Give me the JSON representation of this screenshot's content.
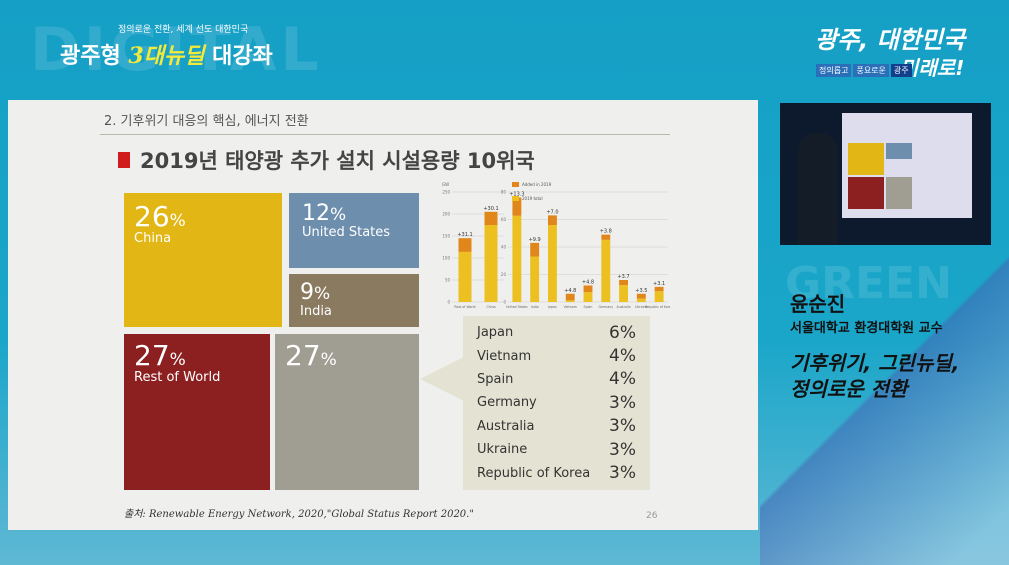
{
  "header": {
    "ghost": "DIGITAL",
    "tagline": "정의로운 전환, 세계 선도 대한민국",
    "title_a": "광주형 ",
    "title_b": "3대뉴딜",
    "title_c": " 대강좌"
  },
  "brand": {
    "line1": "광주, 대한민국",
    "line2": "미래로!",
    "chips": [
      "정의롭고",
      "풍요로운",
      "광주"
    ],
    "ghost": "GREEN"
  },
  "slide": {
    "section": "2. 기후위기 대응의 핵심, 에너지 전환",
    "heading": "2019년 태양광 추가 설치 시설용량 10위국",
    "tiles": [
      {
        "pct": "26",
        "label": "China",
        "color": "#e2b614"
      },
      {
        "pct": "12",
        "label": "United States",
        "color": "#6d8fad"
      },
      {
        "pct": "9",
        "label": "India",
        "color": "#8a7a60"
      },
      {
        "pct": "27",
        "label": "Rest of World",
        "color": "#8c2020"
      },
      {
        "pct": "27",
        "label": "",
        "color": "#a09e92"
      }
    ],
    "pct_sign": "%",
    "others": [
      {
        "country": "Japan",
        "pct": "6%"
      },
      {
        "country": "Vietnam",
        "pct": "4%"
      },
      {
        "country": "Spain",
        "pct": "4%"
      },
      {
        "country": "Germany",
        "pct": "3%"
      },
      {
        "country": "Australia",
        "pct": "3%"
      },
      {
        "country": "Ukraine",
        "pct": "3%"
      },
      {
        "country": "Republic of Korea",
        "pct": "3%"
      }
    ],
    "source": "출처: Renewable Energy Network, 2020,\"Global Status Report 2020.\"",
    "page": "26"
  },
  "chart_data": {
    "type": "bar",
    "stacked": true,
    "ylabel": "GW",
    "legend": [
      "Added in 2019",
      "2019 total"
    ],
    "colors": {
      "added": "#e0861a",
      "total": "#ecc021"
    },
    "panels": [
      {
        "ylim": [
          0,
          250
        ],
        "ticks": [
          0,
          50,
          100,
          150,
          200,
          250
        ],
        "categories": [
          "Rest of World",
          "China"
        ],
        "totals": [
          145,
          205
        ],
        "added": [
          31.1,
          30.1
        ],
        "labels": [
          "+31.1",
          "+30.1"
        ]
      },
      {
        "ylim": [
          0,
          80
        ],
        "ticks": [
          0,
          20,
          40,
          60,
          80
        ],
        "categories": [
          "United States",
          "India",
          "Japan",
          "Vietnam",
          "Spain",
          "Germany",
          "Australia",
          "Ukraine",
          "Republic of Korea"
        ],
        "totals": [
          76,
          43,
          63,
          6,
          12,
          49,
          16,
          6,
          11
        ],
        "added": [
          13.3,
          9.9,
          7.0,
          4.8,
          4.8,
          3.8,
          3.7,
          3.5,
          3.1
        ],
        "labels": [
          "+13.3",
          "+9.9",
          "+7.0",
          "+4.8",
          "+4.8",
          "+3.8",
          "+3.7",
          "+3.5",
          "+3.1"
        ]
      }
    ]
  },
  "speaker": {
    "name": "윤순진",
    "affiliation": "서울대학교 환경대학원 교수",
    "topic1": "기후위기, 그린뉴딜,",
    "topic2": "정의로운 전환"
  }
}
